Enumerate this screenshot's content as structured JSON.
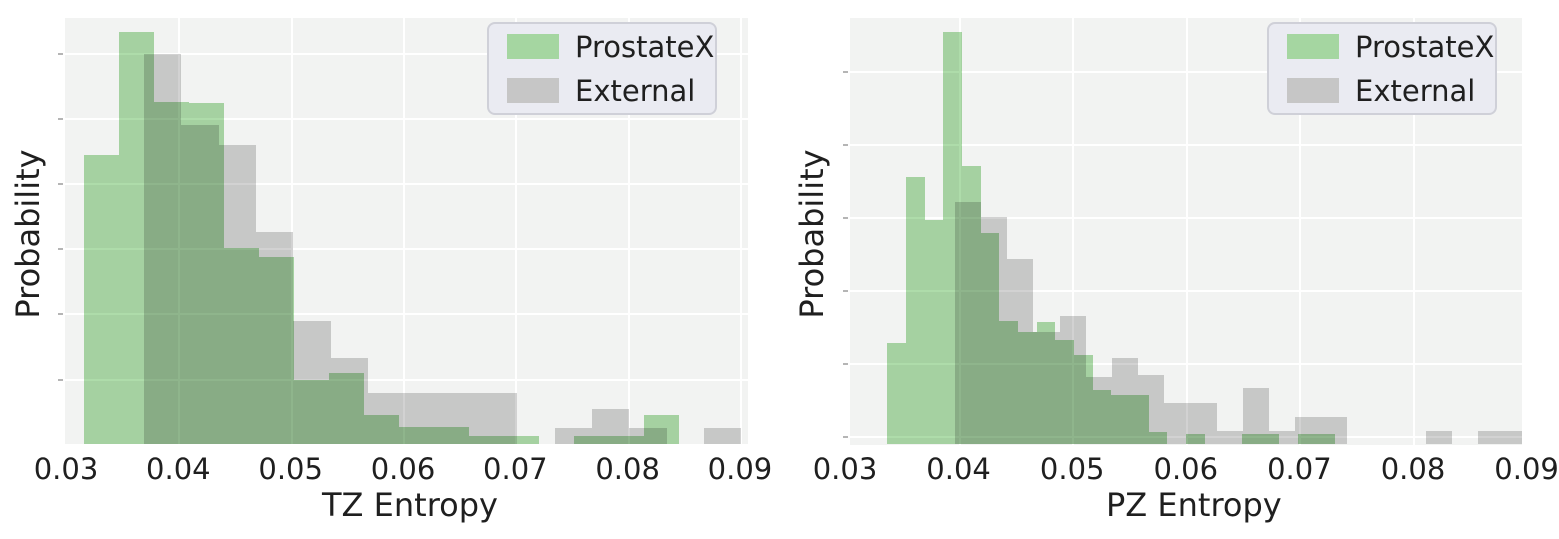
{
  "figure": {
    "background": "#ffffff",
    "plot_background": "#f2f3f2",
    "grid_color": "#ffffff",
    "tick_color": "#b5b5b5",
    "text_color": "#1f1f1f"
  },
  "legend": {
    "bg": "#eaebf2",
    "border": "#cfd0d8",
    "items": [
      {
        "label": "ProstateX",
        "swatch_color": "#a5d6a1"
      },
      {
        "label": "External",
        "swatch_color": "#c6c6c6"
      }
    ]
  },
  "chart_data": [
    {
      "type": "histogram",
      "subplot": "left",
      "title": "",
      "xlabel": "TZ Entropy",
      "ylabel": "Probability",
      "x_tick_labels": [
        "0.03",
        "0.04",
        "0.05",
        "0.06",
        "0.07",
        "0.08",
        "0.09"
      ],
      "x_tick_values": [
        0.03,
        0.04,
        0.05,
        0.06,
        0.07,
        0.08,
        0.09
      ],
      "xlim": [
        0.0299,
        0.0907
      ],
      "y_axis": "probability (tick labels not shown)",
      "grid": true,
      "legend_position": "upper right",
      "series": [
        {
          "name": "ProstateX",
          "color": "#aedcaa",
          "bin_start": 0.0316,
          "bin_width": 0.003116,
          "heights_rel": [
            0.678,
            0.967,
            0.803,
            0.8,
            0.46,
            0.439,
            0.15,
            0.167,
            0.068,
            0.04,
            0.04,
            0.019,
            0.019,
            0,
            0.019,
            0.019,
            0.068
          ]
        },
        {
          "name": "External",
          "color": "#d2d2d2",
          "bin_start": 0.03694,
          "bin_width": 0.003323,
          "heights_rel": [
            0.915,
            0.749,
            0.702,
            0.498,
            0.289,
            0.202,
            0.12,
            0.12,
            0.12,
            0.12,
            0,
            0.038,
            0.082,
            0.038,
            0,
            0.038
          ]
        }
      ]
    },
    {
      "type": "histogram",
      "subplot": "right",
      "title": "",
      "xlabel": "PZ Entropy",
      "ylabel": "Probability",
      "x_tick_labels": [
        "0.03",
        "0.04",
        "0.05",
        "0.06",
        "0.07",
        "0.08",
        "0.09"
      ],
      "x_tick_values": [
        0.03,
        0.04,
        0.05,
        0.06,
        0.07,
        0.08,
        0.09
      ],
      "xlim": [
        0.03,
        0.0906
      ],
      "y_axis": "probability (tick labels not shown)",
      "grid": true,
      "legend_position": "upper right",
      "series": [
        {
          "name": "ProstateX",
          "color": "#aedcaa",
          "bin_start": 0.03372,
          "bin_width": 0.001643,
          "heights_rel": [
            0.237,
            0.627,
            0.527,
            0.968,
            0.654,
            0.496,
            0.29,
            0.264,
            0.287,
            0.245,
            0.21,
            0.128,
            0.116,
            0.116,
            0.029,
            0,
            0.025,
            0,
            0,
            0.025,
            0.025,
            0,
            0.025,
            0.025
          ]
        },
        {
          "name": "External",
          "color": "#d2d2d2",
          "bin_start": 0.03968,
          "bin_width": 0.002303,
          "heights_rel": [
            0.569,
            0.533,
            0.435,
            0.264,
            0.301,
            0.159,
            0.202,
            0.163,
            0.097,
            0.097,
            0.032,
            0.132,
            0.032,
            0.064,
            0.064,
            0,
            0,
            0,
            0.032,
            0,
            0.032,
            0.032
          ]
        }
      ]
    }
  ]
}
